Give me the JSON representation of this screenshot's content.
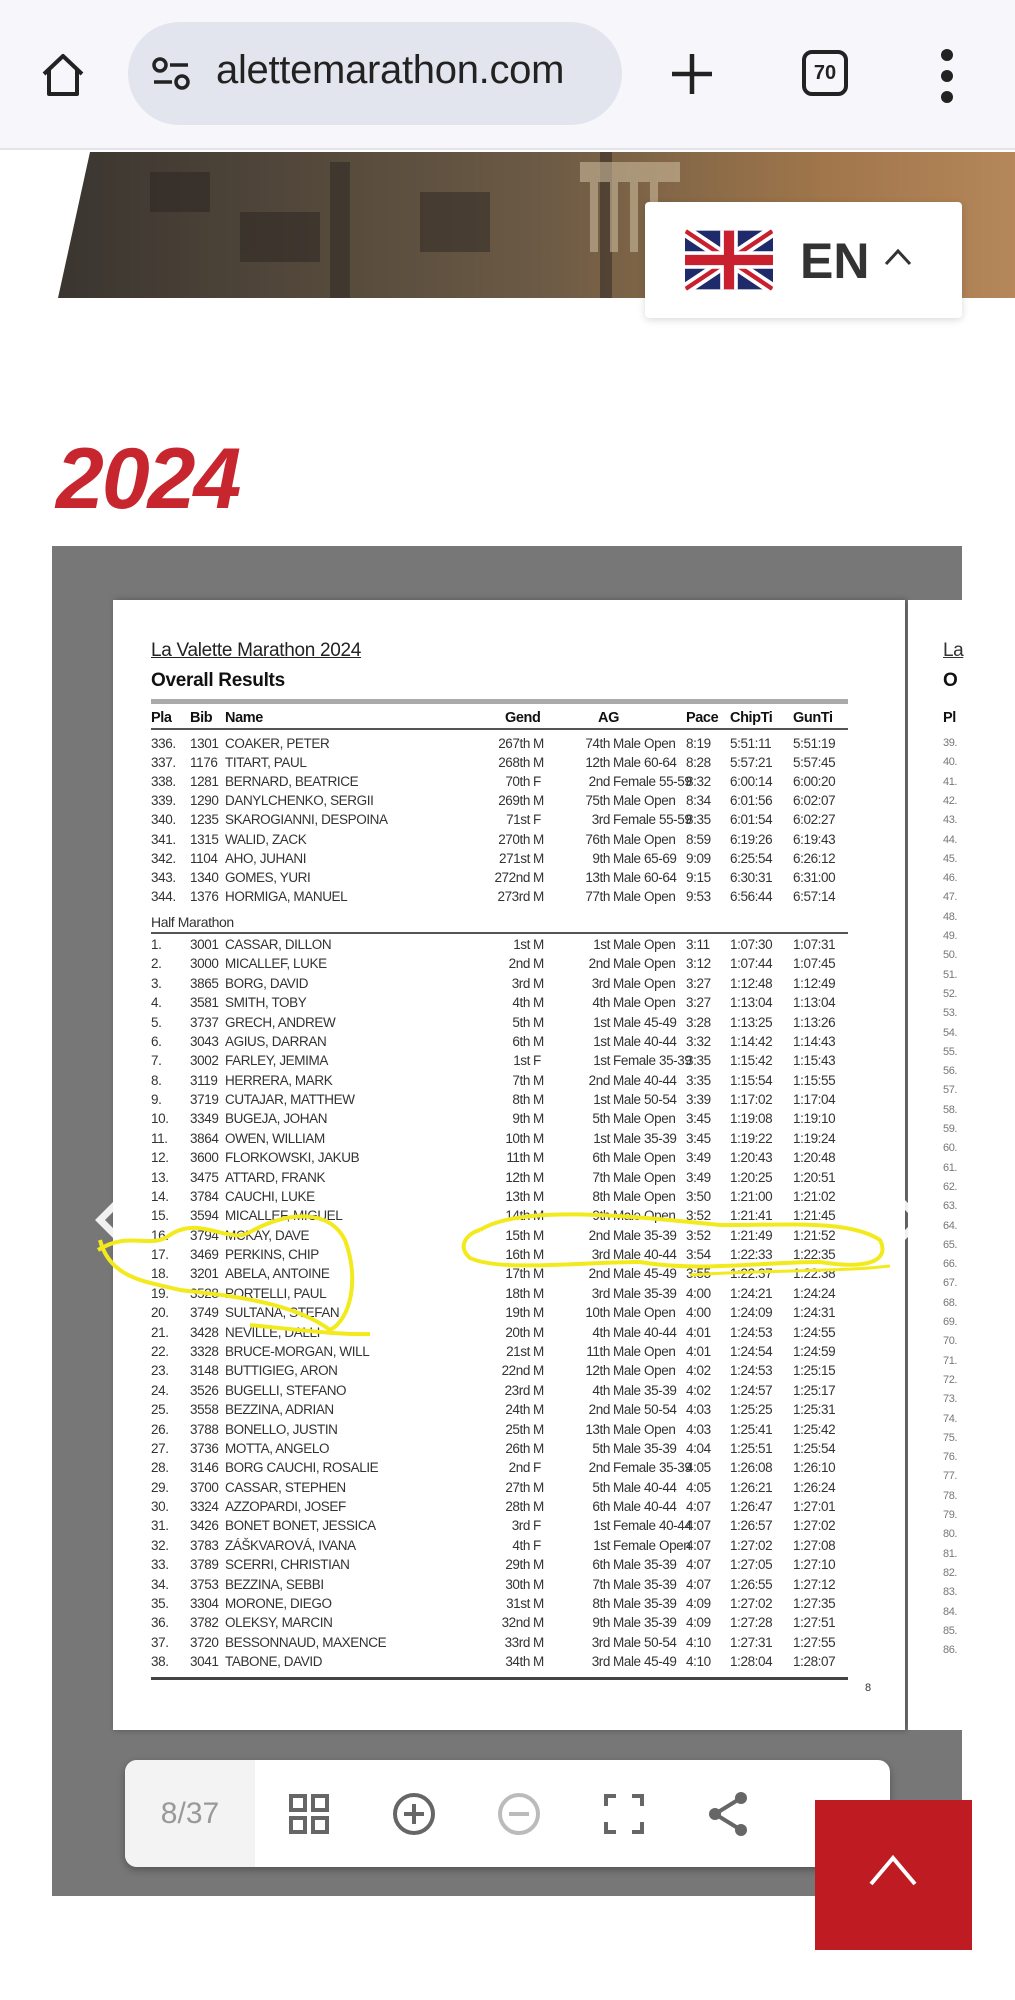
{
  "browser": {
    "url": "alettemarathon.com",
    "tab_count": "70",
    "icons": [
      "home-icon",
      "site-settings-icon",
      "new-tab-icon",
      "tab-switcher-icon",
      "more-menu-icon"
    ]
  },
  "language": {
    "code": "EN",
    "flag": "uk-flag-icon"
  },
  "section": {
    "year": "2024"
  },
  "document": {
    "title": "La Valette Marathon 2024",
    "subtitle": "Overall Results",
    "columns": [
      "Pla",
      "Bib",
      "Name",
      "Gend",
      "AG",
      "Pace",
      "ChipTi",
      "GunTi"
    ],
    "rows_a": [
      [
        "336.",
        "1301",
        "COAKER, PETER",
        "267th",
        "M",
        "74th",
        "Male Open",
        "8:19",
        "5:51:11",
        "5:51:19"
      ],
      [
        "337.",
        "1176",
        "TITART, PAUL",
        "268th",
        "M",
        "12th",
        "Male 60-64",
        "8:28",
        "5:57:21",
        "5:57:45"
      ],
      [
        "338.",
        "1281",
        "BERNARD, BEATRICE",
        "70th",
        "F",
        "2nd",
        "Female 55-59",
        "8:32",
        "6:00:14",
        "6:00:20"
      ],
      [
        "339.",
        "1290",
        "DANYLCHENKO, SERGII",
        "269th",
        "M",
        "75th",
        "Male Open",
        "8:34",
        "6:01:56",
        "6:02:07"
      ],
      [
        "340.",
        "1235",
        "SKAROGIANNI, DESPOINA",
        "71st",
        "F",
        "3rd",
        "Female 55-59",
        "8:35",
        "6:01:54",
        "6:02:27"
      ],
      [
        "341.",
        "1315",
        "WALID, ZACK",
        "270th",
        "M",
        "76th",
        "Male Open",
        "8:59",
        "6:19:26",
        "6:19:43"
      ],
      [
        "342.",
        "1104",
        "AHO, JUHANI",
        "271st",
        "M",
        "9th",
        "Male 65-69",
        "9:09",
        "6:25:54",
        "6:26:12"
      ],
      [
        "343.",
        "1340",
        "GOMES, YURI",
        "272nd",
        "M",
        "13th",
        "Male 60-64",
        "9:15",
        "6:30:31",
        "6:31:00"
      ],
      [
        "344.",
        "1376",
        "HORMIGA, MANUEL",
        "273rd",
        "M",
        "77th",
        "Male Open",
        "9:53",
        "6:56:44",
        "6:57:14"
      ]
    ],
    "section_label": "Half Marathon",
    "rows_b": [
      [
        "1.",
        "3001",
        "CASSAR, DILLON",
        "1st",
        "M",
        "1st",
        "Male Open",
        "3:11",
        "1:07:30",
        "1:07:31"
      ],
      [
        "2.",
        "3000",
        "MICALLEF, LUKE",
        "2nd",
        "M",
        "2nd",
        "Male Open",
        "3:12",
        "1:07:44",
        "1:07:45"
      ],
      [
        "3.",
        "3865",
        "BORG, DAVID",
        "3rd",
        "M",
        "3rd",
        "Male Open",
        "3:27",
        "1:12:48",
        "1:12:49"
      ],
      [
        "4.",
        "3581",
        "SMITH, TOBY",
        "4th",
        "M",
        "4th",
        "Male Open",
        "3:27",
        "1:13:04",
        "1:13:04"
      ],
      [
        "5.",
        "3737",
        "GRECH, ANDREW",
        "5th",
        "M",
        "1st",
        "Male 45-49",
        "3:28",
        "1:13:25",
        "1:13:26"
      ],
      [
        "6.",
        "3043",
        "AGIUS, DARRAN",
        "6th",
        "M",
        "1st",
        "Male 40-44",
        "3:32",
        "1:14:42",
        "1:14:43"
      ],
      [
        "7.",
        "3002",
        "FARLEY, JEMIMA",
        "1st",
        "F",
        "1st",
        "Female 35-39",
        "3:35",
        "1:15:42",
        "1:15:43"
      ],
      [
        "8.",
        "3119",
        "HERRERA, MARK",
        "7th",
        "M",
        "2nd",
        "Male 40-44",
        "3:35",
        "1:15:54",
        "1:15:55"
      ],
      [
        "9.",
        "3719",
        "CUTAJAR, MATTHEW",
        "8th",
        "M",
        "1st",
        "Male 50-54",
        "3:39",
        "1:17:02",
        "1:17:04"
      ],
      [
        "10.",
        "3349",
        "BUGEJA, JOHAN",
        "9th",
        "M",
        "5th",
        "Male Open",
        "3:45",
        "1:19:08",
        "1:19:10"
      ],
      [
        "11.",
        "3864",
        "OWEN, WILLIAM",
        "10th",
        "M",
        "1st",
        "Male 35-39",
        "3:45",
        "1:19:22",
        "1:19:24"
      ],
      [
        "12.",
        "3600",
        "FLORKOWSKI, JAKUB",
        "11th",
        "M",
        "6th",
        "Male Open",
        "3:49",
        "1:20:43",
        "1:20:48"
      ],
      [
        "13.",
        "3475",
        "ATTARD, FRANK",
        "12th",
        "M",
        "7th",
        "Male Open",
        "3:49",
        "1:20:25",
        "1:20:51"
      ],
      [
        "14.",
        "3784",
        "CAUCHI, LUKE",
        "13th",
        "M",
        "8th",
        "Male Open",
        "3:50",
        "1:21:00",
        "1:21:02"
      ],
      [
        "15.",
        "3594",
        "MICALLEF, MIGUEL",
        "14th",
        "M",
        "9th",
        "Male Open",
        "3:52",
        "1:21:41",
        "1:21:45"
      ],
      [
        "16.",
        "3794",
        "MCKAY, DAVE",
        "15th",
        "M",
        "2nd",
        "Male 35-39",
        "3:52",
        "1:21:49",
        "1:21:52"
      ],
      [
        "17.",
        "3469",
        "PERKINS, CHIP",
        "16th",
        "M",
        "3rd",
        "Male 40-44",
        "3:54",
        "1:22:33",
        "1:22:35"
      ],
      [
        "18.",
        "3201",
        "ABELA, ANTOINE",
        "17th",
        "M",
        "2nd",
        "Male 45-49",
        "3:55",
        "1:22:37",
        "1:22:38"
      ],
      [
        "19.",
        "3528",
        "PORTELLI, PAUL",
        "18th",
        "M",
        "3rd",
        "Male 35-39",
        "4:00",
        "1:24:21",
        "1:24:24"
      ],
      [
        "20.",
        "3749",
        "SULTANA, STEFAN",
        "19th",
        "M",
        "10th",
        "Male Open",
        "4:00",
        "1:24:09",
        "1:24:31"
      ],
      [
        "21.",
        "3428",
        "NEVILLE, DALLI",
        "20th",
        "M",
        "4th",
        "Male 40-44",
        "4:01",
        "1:24:53",
        "1:24:55"
      ],
      [
        "22.",
        "3328",
        "BRUCE-MORGAN, WILL",
        "21st",
        "M",
        "11th",
        "Male Open",
        "4:01",
        "1:24:54",
        "1:24:59"
      ],
      [
        "23.",
        "3148",
        "BUTTIGIEG, ARON",
        "22nd",
        "M",
        "12th",
        "Male Open",
        "4:02",
        "1:24:53",
        "1:25:15"
      ],
      [
        "24.",
        "3526",
        "BUGELLI, STEFANO",
        "23rd",
        "M",
        "4th",
        "Male 35-39",
        "4:02",
        "1:24:57",
        "1:25:17"
      ],
      [
        "25.",
        "3558",
        "BEZZINA, ADRIAN",
        "24th",
        "M",
        "2nd",
        "Male 50-54",
        "4:03",
        "1:25:25",
        "1:25:31"
      ],
      [
        "26.",
        "3788",
        "BONELLO, JUSTIN",
        "25th",
        "M",
        "13th",
        "Male Open",
        "4:03",
        "1:25:41",
        "1:25:42"
      ],
      [
        "27.",
        "3736",
        "MOTTA, ANGELO",
        "26th",
        "M",
        "5th",
        "Male 35-39",
        "4:04",
        "1:25:51",
        "1:25:54"
      ],
      [
        "28.",
        "3146",
        "BORG CAUCHI, ROSALIE",
        "2nd",
        "F",
        "2nd",
        "Female 35-39",
        "4:05",
        "1:26:08",
        "1:26:10"
      ],
      [
        "29.",
        "3700",
        "CASSAR, STEPHEN",
        "27th",
        "M",
        "5th",
        "Male 40-44",
        "4:05",
        "1:26:21",
        "1:26:24"
      ],
      [
        "30.",
        "3324",
        "AZZOPARDI, JOSEF",
        "28th",
        "M",
        "6th",
        "Male 40-44",
        "4:07",
        "1:26:47",
        "1:27:01"
      ],
      [
        "31.",
        "3426",
        "BONET BONET, JESSICA",
        "3rd",
        "F",
        "1st",
        "Female 40-44",
        "4:07",
        "1:26:57",
        "1:27:02"
      ],
      [
        "32.",
        "3783",
        "ZÁŠKVAROVÁ, IVANA",
        "4th",
        "F",
        "1st",
        "Female Open",
        "4:07",
        "1:27:02",
        "1:27:08"
      ],
      [
        "33.",
        "3789",
        "SCERRI, CHRISTIAN",
        "29th",
        "M",
        "6th",
        "Male 35-39",
        "4:07",
        "1:27:05",
        "1:27:10"
      ],
      [
        "34.",
        "3753",
        "BEZZINA, SEBBI",
        "30th",
        "M",
        "7th",
        "Male 35-39",
        "4:07",
        "1:26:55",
        "1:27:12"
      ],
      [
        "35.",
        "3304",
        "MORONE, DIEGO",
        "31st",
        "M",
        "8th",
        "Male 35-39",
        "4:09",
        "1:27:02",
        "1:27:35"
      ],
      [
        "36.",
        "3782",
        "OLEKSY, MARCIN",
        "32nd",
        "M",
        "9th",
        "Male 35-39",
        "4:09",
        "1:27:28",
        "1:27:51"
      ],
      [
        "37.",
        "3720",
        "BESSONNAUD, MAXENCE",
        "33rd",
        "M",
        "3rd",
        "Male 50-54",
        "4:10",
        "1:27:31",
        "1:27:55"
      ],
      [
        "38.",
        "3041",
        "TABONE, DAVID",
        "34th",
        "M",
        "3rd",
        "Male 45-49",
        "4:10",
        "1:28:04",
        "1:28:07"
      ]
    ],
    "page_number": "8",
    "next_page": {
      "title": "La",
      "subtitle": "O",
      "header": "Pl",
      "places": [
        "39.",
        "40.",
        "41.",
        "42.",
        "43.",
        "44.",
        "45.",
        "46.",
        "47.",
        "48.",
        "49.",
        "50.",
        "51.",
        "52.",
        "53.",
        "54.",
        "55.",
        "56.",
        "57.",
        "58.",
        "59.",
        "60.",
        "61.",
        "62.",
        "63.",
        "64.",
        "65.",
        "66.",
        "67.",
        "68.",
        "69.",
        "70.",
        "71.",
        "72.",
        "73.",
        "74.",
        "75.",
        "76.",
        "77.",
        "78.",
        "79.",
        "80.",
        "81.",
        "82.",
        "83.",
        "84.",
        "85.",
        "86."
      ]
    }
  },
  "viewer": {
    "page_indicator": "8/37",
    "tools": [
      "thumbnails-icon",
      "zoom-in-icon",
      "zoom-out-icon",
      "fullscreen-icon",
      "share-icon"
    ]
  },
  "colors": {
    "accent": "#c8262f",
    "back_to_top": "#bf1b23",
    "viewer_bg": "#777777",
    "highlight": "#f2ea1d"
  }
}
